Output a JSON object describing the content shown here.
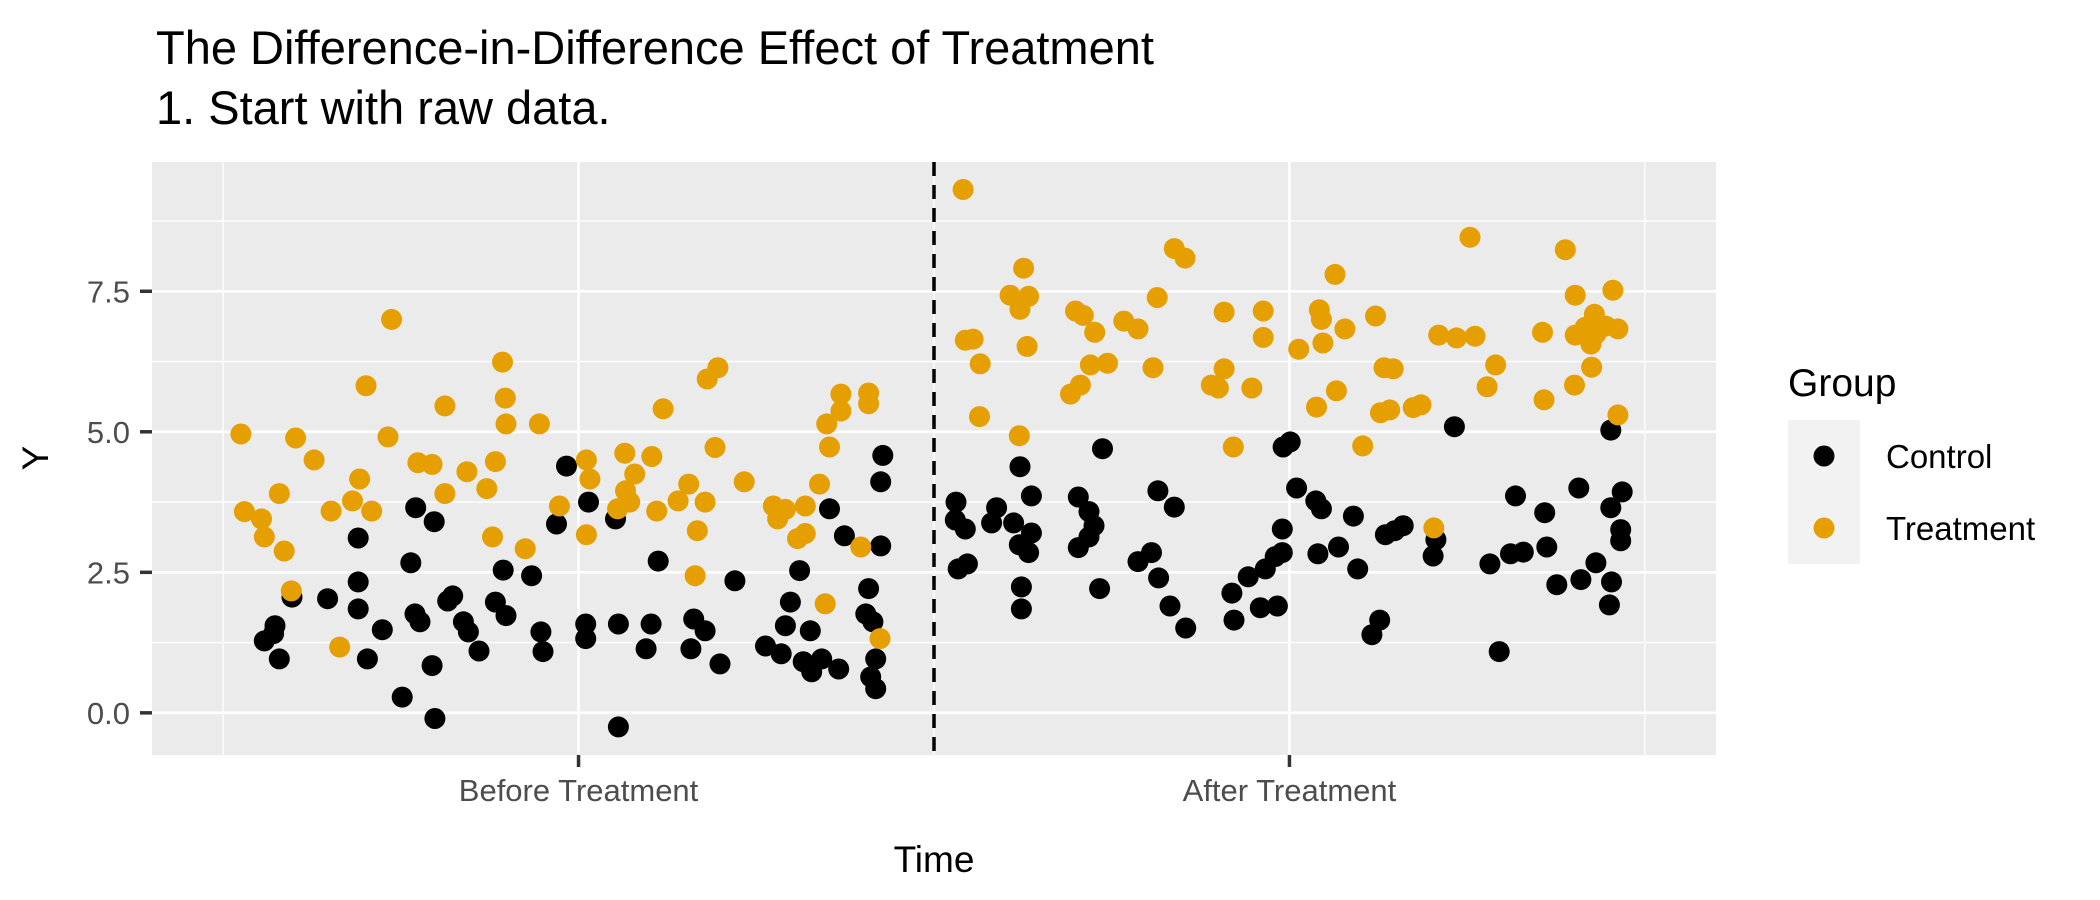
{
  "title": "The Difference-in-Difference Effect of Treatment",
  "subtitle": "1. Start with raw data.",
  "axes": {
    "x_title": "Time",
    "y_title": "Y",
    "x_tick_labels": [
      "Before Treatment",
      "After Treatment"
    ],
    "y_tick_labels": [
      "0.0",
      "2.5",
      "5.0",
      "7.5"
    ]
  },
  "legend": {
    "title": "Group",
    "entries": [
      {
        "label": "Control",
        "color": "#000000"
      },
      {
        "label": "Treatment",
        "color": "#E69F00"
      }
    ],
    "key_fill": "#F2F2F2"
  },
  "style": {
    "panel_fill": "#EBEBEB",
    "grid_color": "#FFFFFF",
    "tick_color": "#333333",
    "axis_text_color": "#4D4D4D",
    "point_radius": 10.5,
    "dashed_line_color": "#000000"
  },
  "chart_data": {
    "type": "scatter",
    "title": "The Difference-in-Difference Effect of Treatment",
    "subtitle": "1. Start with raw data.",
    "xlabel": "Time",
    "ylabel": "Y",
    "x_categories": [
      "Before Treatment",
      "After Treatment"
    ],
    "x_positions": [
      1,
      2
    ],
    "xlim": [
      0.4,
      2.6
    ],
    "ylim": [
      -0.75,
      9.8
    ],
    "y_major": [
      0,
      2.5,
      5,
      7.5
    ],
    "y_minor": [
      1.25,
      3.75,
      6.25,
      8.75
    ],
    "x_minor": [
      0.5,
      1.5,
      2.5
    ],
    "treatment_line_x": 1.5,
    "grid": "on",
    "legend_position": "right",
    "series": [
      {
        "name": "Control",
        "color": "#000000",
        "points": [
          [
            0.771,
            3.65
          ],
          [
            0.797,
            3.4
          ],
          [
            0.69,
            3.11
          ],
          [
            0.764,
            2.67
          ],
          [
            0.894,
            2.54
          ],
          [
            0.934,
            2.44
          ],
          [
            0.69,
            2.33
          ],
          [
            0.597,
            2.06
          ],
          [
            0.647,
            2.03
          ],
          [
            0.69,
            1.85
          ],
          [
            0.573,
            1.55
          ],
          [
            0.558,
            1.28
          ],
          [
            0.571,
            1.41
          ],
          [
            0.724,
            1.48
          ],
          [
            0.77,
            1.76
          ],
          [
            0.777,
            1.62
          ],
          [
            0.816,
            1.99
          ],
          [
            0.823,
            2.08
          ],
          [
            0.838,
            1.62
          ],
          [
            0.845,
            1.44
          ],
          [
            0.86,
            1.1
          ],
          [
            0.883,
            1.97
          ],
          [
            0.898,
            1.73
          ],
          [
            0.579,
            0.96
          ],
          [
            0.703,
            0.96
          ],
          [
            0.794,
            0.84
          ],
          [
            0.752,
            0.28
          ],
          [
            0.798,
            -0.1
          ],
          [
            0.983,
            4.39
          ],
          [
            1.014,
            3.75
          ],
          [
            1.052,
            3.45
          ],
          [
            0.969,
            3.36
          ],
          [
            1.112,
            2.7
          ],
          [
            1.22,
            2.35
          ],
          [
            1.353,
            3.63
          ],
          [
            1.374,
            3.15
          ],
          [
            1.425,
            2.97
          ],
          [
            1.425,
            4.11
          ],
          [
            1.428,
            4.58
          ],
          [
            1.311,
            2.53
          ],
          [
            1.298,
            1.97
          ],
          [
            1.291,
            1.55
          ],
          [
            1.326,
            1.46
          ],
          [
            1.263,
            1.19
          ],
          [
            1.285,
            1.05
          ],
          [
            1.316,
            0.91
          ],
          [
            1.328,
            0.73
          ],
          [
            1.342,
            0.96
          ],
          [
            1.366,
            0.78
          ],
          [
            1.408,
            2.21
          ],
          [
            1.404,
            1.76
          ],
          [
            1.414,
            1.62
          ],
          [
            1.418,
            0.96
          ],
          [
            1.411,
            0.64
          ],
          [
            1.418,
            0.43
          ],
          [
            1.056,
            -0.25
          ],
          [
            1.01,
            1.58
          ],
          [
            1.01,
            1.32
          ],
          [
            1.056,
            1.58
          ],
          [
            1.102,
            1.58
          ],
          [
            1.095,
            1.14
          ],
          [
            1.158,
            1.14
          ],
          [
            1.162,
            1.67
          ],
          [
            1.178,
            1.46
          ],
          [
            1.199,
            0.87
          ],
          [
            0.947,
            1.44
          ],
          [
            0.95,
            1.09
          ],
          [
            1.737,
            4.7
          ],
          [
            1.991,
            4.73
          ],
          [
            2.001,
            4.82
          ],
          [
            2.232,
            5.09
          ],
          [
            2.452,
            5.03
          ],
          [
            1.621,
            4.38
          ],
          [
            1.815,
            3.95
          ],
          [
            1.838,
            3.66
          ],
          [
            1.637,
            3.86
          ],
          [
            1.703,
            3.84
          ],
          [
            1.531,
            3.75
          ],
          [
            1.588,
            3.65
          ],
          [
            1.53,
            3.43
          ],
          [
            1.544,
            3.27
          ],
          [
            1.581,
            3.38
          ],
          [
            1.612,
            3.38
          ],
          [
            1.718,
            3.58
          ],
          [
            1.725,
            3.33
          ],
          [
            1.718,
            3.13
          ],
          [
            1.637,
            3.2
          ],
          [
            1.62,
            2.99
          ],
          [
            1.633,
            2.85
          ],
          [
            1.703,
            2.94
          ],
          [
            1.547,
            2.65
          ],
          [
            1.534,
            2.56
          ],
          [
            1.787,
            2.69
          ],
          [
            1.806,
            2.85
          ],
          [
            1.816,
            2.4
          ],
          [
            1.623,
            2.24
          ],
          [
            1.733,
            2.21
          ],
          [
            1.623,
            1.85
          ],
          [
            1.832,
            1.9
          ],
          [
            1.854,
            1.51
          ],
          [
            1.919,
            2.13
          ],
          [
            1.922,
            1.65
          ],
          [
            1.942,
            2.42
          ],
          [
            1.959,
            1.87
          ],
          [
            1.983,
            1.9
          ],
          [
            1.966,
            2.56
          ],
          [
            1.98,
            2.78
          ],
          [
            1.99,
            2.85
          ],
          [
            1.99,
            3.27
          ],
          [
            2.01,
            4.0
          ],
          [
            2.037,
            3.77
          ],
          [
            2.045,
            3.63
          ],
          [
            2.04,
            2.83
          ],
          [
            2.318,
            3.86
          ],
          [
            2.407,
            4.0
          ],
          [
            2.468,
            3.93
          ],
          [
            2.452,
            3.65
          ],
          [
            2.359,
            3.56
          ],
          [
            2.09,
            3.5
          ],
          [
            2.135,
            3.17
          ],
          [
            2.148,
            3.24
          ],
          [
            2.16,
            3.33
          ],
          [
            2.206,
            3.08
          ],
          [
            2.202,
            2.79
          ],
          [
            2.069,
            2.95
          ],
          [
            2.096,
            2.56
          ],
          [
            2.282,
            2.65
          ],
          [
            2.311,
            2.83
          ],
          [
            2.329,
            2.86
          ],
          [
            2.362,
            2.95
          ],
          [
            2.376,
            2.28
          ],
          [
            2.41,
            2.37
          ],
          [
            2.431,
            2.67
          ],
          [
            2.453,
            2.33
          ],
          [
            2.45,
            1.92
          ],
          [
            2.466,
            3.26
          ],
          [
            2.466,
            3.06
          ],
          [
            2.127,
            1.65
          ],
          [
            2.116,
            1.39
          ],
          [
            2.295,
            1.09
          ]
        ]
      },
      {
        "name": "Treatment",
        "color": "#E69F00",
        "points": [
          [
            0.737,
            7.0
          ],
          [
            0.893,
            6.24
          ],
          [
            0.701,
            5.82
          ],
          [
            0.812,
            5.46
          ],
          [
            0.897,
            5.6
          ],
          [
            0.898,
            5.14
          ],
          [
            0.525,
            4.96
          ],
          [
            0.602,
            4.89
          ],
          [
            0.732,
            4.91
          ],
          [
            0.945,
            5.14
          ],
          [
            0.628,
            4.5
          ],
          [
            1.196,
            6.14
          ],
          [
            1.181,
            5.94
          ],
          [
            1.119,
            5.41
          ],
          [
            1.369,
            5.67
          ],
          [
            1.408,
            5.69
          ],
          [
            1.408,
            5.5
          ],
          [
            1.369,
            5.37
          ],
          [
            1.349,
            5.14
          ],
          [
            1.065,
            4.62
          ],
          [
            1.103,
            4.56
          ],
          [
            1.192,
            4.72
          ],
          [
            1.353,
            4.73
          ],
          [
            1.011,
            4.5
          ],
          [
            0.692,
            4.16
          ],
          [
            0.774,
            4.45
          ],
          [
            0.794,
            4.42
          ],
          [
            0.843,
            4.29
          ],
          [
            0.883,
            4.47
          ],
          [
            0.871,
            3.99
          ],
          [
            0.579,
            3.9
          ],
          [
            0.53,
            3.58
          ],
          [
            0.554,
            3.45
          ],
          [
            0.558,
            3.13
          ],
          [
            0.586,
            2.88
          ],
          [
            0.652,
            3.59
          ],
          [
            0.682,
            3.77
          ],
          [
            0.709,
            3.59
          ],
          [
            0.879,
            3.13
          ],
          [
            0.925,
            2.92
          ],
          [
            0.596,
            2.17
          ],
          [
            0.664,
            1.17
          ],
          [
            0.812,
            3.9
          ],
          [
            0.973,
            3.68
          ],
          [
            1.011,
            3.17
          ],
          [
            1.079,
            4.25
          ],
          [
            1.016,
            4.16
          ],
          [
            1.066,
            3.95
          ],
          [
            1.072,
            3.75
          ],
          [
            1.055,
            3.63
          ],
          [
            1.11,
            3.59
          ],
          [
            1.14,
            3.77
          ],
          [
            1.155,
            4.07
          ],
          [
            1.178,
            3.75
          ],
          [
            1.233,
            4.11
          ],
          [
            1.167,
            3.24
          ],
          [
            1.164,
            2.44
          ],
          [
            1.274,
            3.68
          ],
          [
            1.291,
            3.62
          ],
          [
            1.28,
            3.45
          ],
          [
            1.319,
            3.68
          ],
          [
            1.339,
            4.07
          ],
          [
            1.308,
            3.1
          ],
          [
            1.319,
            3.19
          ],
          [
            1.397,
            2.95
          ],
          [
            1.347,
            1.94
          ],
          [
            1.424,
            1.32
          ],
          [
            1.541,
            9.31
          ],
          [
            1.838,
            8.26
          ],
          [
            1.853,
            8.09
          ],
          [
            1.626,
            7.91
          ],
          [
            1.607,
            7.43
          ],
          [
            1.633,
            7.41
          ],
          [
            1.621,
            7.18
          ],
          [
            1.814,
            7.39
          ],
          [
            1.699,
            7.15
          ],
          [
            1.71,
            7.07
          ],
          [
            1.767,
            6.97
          ],
          [
            1.787,
            6.83
          ],
          [
            1.726,
            6.77
          ],
          [
            1.908,
            7.13
          ],
          [
            1.963,
            7.15
          ],
          [
            1.544,
            6.63
          ],
          [
            1.555,
            6.65
          ],
          [
            1.631,
            6.52
          ],
          [
            1.963,
            6.68
          ],
          [
            2.013,
            6.47
          ],
          [
            2.042,
            7.17
          ],
          [
            2.045,
            7.0
          ],
          [
            2.047,
            6.58
          ],
          [
            1.565,
            6.21
          ],
          [
            1.72,
            6.19
          ],
          [
            1.744,
            6.22
          ],
          [
            1.808,
            6.14
          ],
          [
            1.908,
            6.12
          ],
          [
            1.89,
            5.83
          ],
          [
            1.9,
            5.78
          ],
          [
            1.947,
            5.78
          ],
          [
            1.706,
            5.83
          ],
          [
            1.692,
            5.67
          ],
          [
            1.564,
            5.27
          ],
          [
            1.62,
            4.93
          ],
          [
            2.038,
            5.44
          ],
          [
            1.921,
            4.73
          ],
          [
            2.254,
            8.46
          ],
          [
            2.388,
            8.24
          ],
          [
            2.064,
            7.8
          ],
          [
            2.402,
            7.43
          ],
          [
            2.455,
            7.52
          ],
          [
            2.121,
            7.06
          ],
          [
            2.078,
            6.83
          ],
          [
            2.21,
            6.72
          ],
          [
            2.235,
            6.67
          ],
          [
            2.261,
            6.7
          ],
          [
            2.356,
            6.77
          ],
          [
            2.402,
            6.72
          ],
          [
            2.416,
            6.86
          ],
          [
            2.429,
            7.09
          ],
          [
            2.431,
            6.74
          ],
          [
            2.445,
            6.88
          ],
          [
            2.462,
            6.83
          ],
          [
            2.424,
            6.56
          ],
          [
            2.133,
            6.14
          ],
          [
            2.146,
            6.12
          ],
          [
            2.29,
            6.19
          ],
          [
            2.425,
            6.15
          ],
          [
            2.066,
            5.73
          ],
          [
            2.278,
            5.8
          ],
          [
            2.401,
            5.83
          ],
          [
            2.358,
            5.57
          ],
          [
            2.128,
            5.34
          ],
          [
            2.141,
            5.39
          ],
          [
            2.174,
            5.43
          ],
          [
            2.185,
            5.48
          ],
          [
            2.462,
            5.3
          ],
          [
            2.103,
            4.75
          ],
          [
            2.203,
            3.29
          ]
        ]
      }
    ]
  }
}
